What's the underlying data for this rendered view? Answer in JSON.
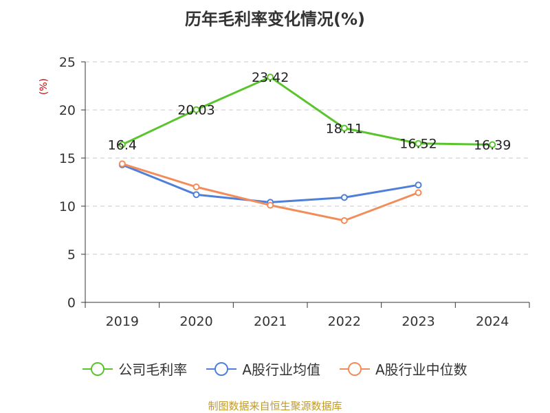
{
  "colors": {
    "series_1": "#5ac42d",
    "series_2": "#4e7fd9",
    "series_3": "#f28c5a",
    "unit_label": "#cc0000",
    "source_text": "#c19a2c"
  },
  "chart_data": {
    "type": "line",
    "title": "历年毛利率变化情况(%)",
    "ylabel": "(%)",
    "xlabel": "",
    "categories": [
      "2019",
      "2020",
      "2021",
      "2022",
      "2023",
      "2024"
    ],
    "ylim": [
      0,
      25
    ],
    "yticks": [
      0,
      5,
      10,
      15,
      20,
      25
    ],
    "grid": true,
    "legend_position": "bottom",
    "series": [
      {
        "name": "公司毛利率",
        "values": [
          16.4,
          20.03,
          23.42,
          18.11,
          16.52,
          16.39
        ],
        "data_labels": [
          "16.4",
          "20.03",
          "23.42",
          "18.11",
          "16.52",
          "16.39"
        ]
      },
      {
        "name": "A股行业均值",
        "values": [
          14.3,
          11.2,
          10.4,
          10.9,
          12.2,
          null
        ]
      },
      {
        "name": "A股行业中位数",
        "values": [
          14.4,
          12.0,
          10.1,
          8.5,
          11.4,
          null
        ]
      }
    ]
  },
  "source": "制图数据来自恒生聚源数据库"
}
